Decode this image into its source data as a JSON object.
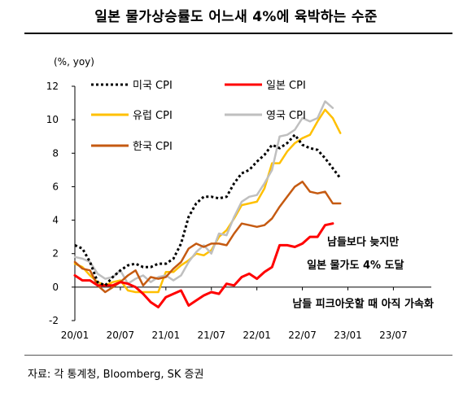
{
  "title": "일본 물가상승률도 어느새 4%에 육박하는 수준",
  "source": "자료: 각 통계청, Bloomberg, SK 증권",
  "chart_data": {
    "type": "line",
    "unit_label": "(%, yoy)",
    "ylim": [
      -2,
      12
    ],
    "yticks": [
      "12",
      "10",
      "8",
      "6",
      "4",
      "2",
      "0",
      "-2"
    ],
    "xlim": [
      "2020-01",
      "2023-12"
    ],
    "xticks": [
      {
        "date": "2020-01",
        "label": "20/01"
      },
      {
        "date": "2020-07",
        "label": "20/07"
      },
      {
        "date": "2021-01",
        "label": "21/01"
      },
      {
        "date": "2021-07",
        "label": "21/07"
      },
      {
        "date": "2022-01",
        "label": "22/01"
      },
      {
        "date": "2022-07",
        "label": "22/07"
      },
      {
        "date": "2023-01",
        "label": "23/01"
      },
      {
        "date": "2023-07",
        "label": "23/07"
      }
    ],
    "legend_position": "top",
    "series": [
      {
        "name": "미국 CPI",
        "color": "#000000",
        "style": "dotted",
        "x": [
          "2020-01",
          "2020-02",
          "2020-03",
          "2020-04",
          "2020-05",
          "2020-06",
          "2020-07",
          "2020-08",
          "2020-09",
          "2020-10",
          "2020-11",
          "2020-12",
          "2021-01",
          "2021-02",
          "2021-03",
          "2021-04",
          "2021-05",
          "2021-06",
          "2021-07",
          "2021-08",
          "2021-09",
          "2021-10",
          "2021-11",
          "2021-12",
          "2022-01",
          "2022-02",
          "2022-03",
          "2022-04",
          "2022-05",
          "2022-06",
          "2022-07",
          "2022-08",
          "2022-09",
          "2022-10",
          "2022-11",
          "2022-12"
        ],
        "y": [
          2.5,
          2.3,
          1.5,
          0.3,
          0.1,
          0.6,
          1.0,
          1.3,
          1.4,
          1.2,
          1.2,
          1.4,
          1.4,
          1.7,
          2.6,
          4.2,
          5.0,
          5.4,
          5.4,
          5.3,
          5.4,
          6.2,
          6.8,
          7.0,
          7.5,
          7.9,
          8.5,
          8.3,
          8.6,
          9.1,
          8.5,
          8.3,
          8.2,
          7.7,
          7.1,
          6.5
        ]
      },
      {
        "name": "일본 CPI",
        "color": "#ff0000",
        "style": "solid",
        "x": [
          "2020-01",
          "2020-02",
          "2020-03",
          "2020-04",
          "2020-05",
          "2020-06",
          "2020-07",
          "2020-08",
          "2020-09",
          "2020-10",
          "2020-11",
          "2020-12",
          "2021-01",
          "2021-02",
          "2021-03",
          "2021-04",
          "2021-05",
          "2021-06",
          "2021-07",
          "2021-08",
          "2021-09",
          "2021-10",
          "2021-11",
          "2021-12",
          "2022-01",
          "2022-02",
          "2022-03",
          "2022-04",
          "2022-05",
          "2022-06",
          "2022-07",
          "2022-08",
          "2022-09",
          "2022-10",
          "2022-11"
        ],
        "y": [
          0.7,
          0.4,
          0.4,
          0.1,
          0.1,
          0.1,
          0.3,
          0.2,
          0.0,
          -0.4,
          -0.9,
          -1.2,
          -0.6,
          -0.4,
          -0.2,
          -1.1,
          -0.8,
          -0.5,
          -0.3,
          -0.4,
          0.2,
          0.1,
          0.6,
          0.8,
          0.5,
          0.9,
          1.2,
          2.5,
          2.5,
          2.4,
          2.6,
          3.0,
          3.0,
          3.7,
          3.8
        ]
      },
      {
        "name": "유럽 CPI",
        "color": "#ffc000",
        "style": "solid",
        "x": [
          "2020-01",
          "2020-02",
          "2020-03",
          "2020-04",
          "2020-05",
          "2020-06",
          "2020-07",
          "2020-08",
          "2020-09",
          "2020-10",
          "2020-11",
          "2020-12",
          "2021-01",
          "2021-02",
          "2021-03",
          "2021-04",
          "2021-05",
          "2021-06",
          "2021-07",
          "2021-08",
          "2021-09",
          "2021-10",
          "2021-11",
          "2021-12",
          "2022-01",
          "2022-02",
          "2022-03",
          "2022-04",
          "2022-05",
          "2022-06",
          "2022-07",
          "2022-08",
          "2022-09",
          "2022-10",
          "2022-11",
          "2022-12"
        ],
        "y": [
          1.4,
          1.2,
          0.7,
          0.3,
          0.1,
          0.3,
          0.4,
          -0.2,
          -0.3,
          -0.3,
          -0.3,
          -0.3,
          0.9,
          0.9,
          1.3,
          1.6,
          2.0,
          1.9,
          2.2,
          3.0,
          3.4,
          4.1,
          4.9,
          5.0,
          5.1,
          5.9,
          7.4,
          7.4,
          8.1,
          8.6,
          8.9,
          9.1,
          9.9,
          10.6,
          10.1,
          9.2
        ]
      },
      {
        "name": "영국 CPI",
        "color": "#bfbfbf",
        "style": "solid",
        "x": [
          "2020-01",
          "2020-02",
          "2020-03",
          "2020-04",
          "2020-05",
          "2020-06",
          "2020-07",
          "2020-08",
          "2020-09",
          "2020-10",
          "2020-11",
          "2020-12",
          "2021-01",
          "2021-02",
          "2021-03",
          "2021-04",
          "2021-05",
          "2021-06",
          "2021-07",
          "2021-08",
          "2021-09",
          "2021-10",
          "2021-11",
          "2021-12",
          "2022-01",
          "2022-02",
          "2022-03",
          "2022-04",
          "2022-05",
          "2022-06",
          "2022-07",
          "2022-08",
          "2022-09",
          "2022-10",
          "2022-11"
        ],
        "y": [
          1.8,
          1.7,
          1.5,
          0.8,
          0.5,
          0.6,
          1.0,
          0.2,
          0.5,
          0.7,
          0.3,
          0.6,
          0.7,
          0.4,
          0.7,
          1.5,
          2.1,
          2.5,
          2.0,
          3.2,
          3.1,
          4.2,
          5.1,
          5.4,
          5.5,
          6.2,
          7.0,
          9.0,
          9.1,
          9.4,
          10.1,
          9.9,
          10.1,
          11.1,
          10.7
        ]
      },
      {
        "name": "한국 CPI",
        "color": "#c55a11",
        "style": "solid",
        "x": [
          "2020-01",
          "2020-02",
          "2020-03",
          "2020-04",
          "2020-05",
          "2020-06",
          "2020-07",
          "2020-08",
          "2020-09",
          "2020-10",
          "2020-11",
          "2020-12",
          "2021-01",
          "2021-02",
          "2021-03",
          "2021-04",
          "2021-05",
          "2021-06",
          "2021-07",
          "2021-08",
          "2021-09",
          "2021-10",
          "2021-11",
          "2021-12",
          "2022-01",
          "2022-02",
          "2022-03",
          "2022-04",
          "2022-05",
          "2022-06",
          "2022-07",
          "2022-08",
          "2022-09",
          "2022-10",
          "2022-11",
          "2022-12"
        ],
        "y": [
          1.5,
          1.1,
          1.0,
          0.1,
          -0.3,
          0.0,
          0.3,
          0.7,
          1.0,
          0.1,
          0.6,
          0.5,
          0.6,
          1.1,
          1.5,
          2.3,
          2.6,
          2.4,
          2.6,
          2.6,
          2.5,
          3.2,
          3.8,
          3.7,
          3.6,
          3.7,
          4.1,
          4.8,
          5.4,
          6.0,
          6.3,
          5.7,
          5.6,
          5.7,
          5.0,
          5.0
        ]
      }
    ],
    "annotations": [
      {
        "text": "남들보다 늦지만",
        "date": "2023-03",
        "value": 2.5
      },
      {
        "text": "일본 물가도 4% 도달",
        "date": "2023-02",
        "value": 1.1
      },
      {
        "text": "남들 피크아웃할 때 아직 가속화",
        "date": "2023-03",
        "value": -1.2
      }
    ]
  }
}
